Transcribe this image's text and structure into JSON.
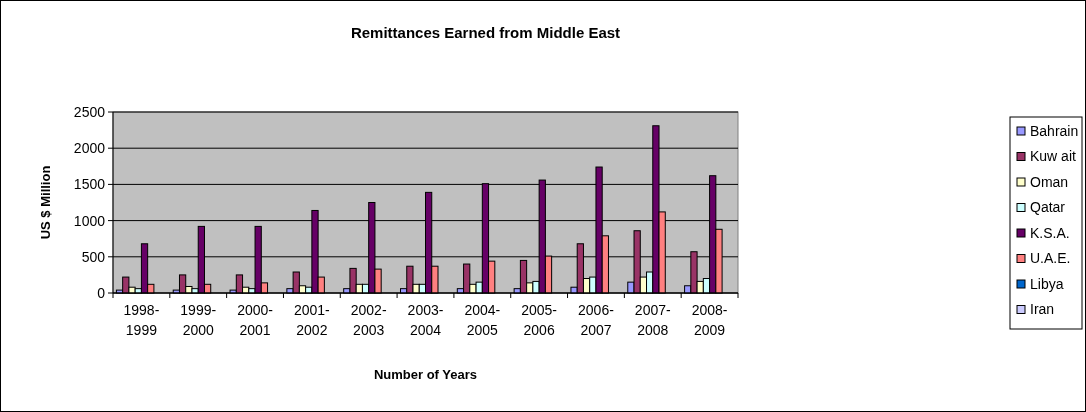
{
  "chart_data": {
    "type": "bar",
    "title": "Remittances Earned from Middle East",
    "xlabel": "Number of Years",
    "ylabel": "US $ Million",
    "categories": [
      "1998-1999",
      "1999-2000",
      "2000-2001",
      "2001-2002",
      "2002-2003",
      "2003-2004",
      "2004-2005",
      "2005-2006",
      "2006-2007",
      "2007-2008",
      "2008-2009"
    ],
    "series": [
      {
        "name": "Bahrain",
        "color": "#9999ff",
        "values": [
          40,
          40,
          40,
          60,
          60,
          60,
          60,
          60,
          80,
          150,
          100
        ]
      },
      {
        "name": "Kuw ait",
        "color": "#993366",
        "values": [
          220,
          250,
          250,
          290,
          340,
          370,
          400,
          450,
          680,
          860,
          570
        ]
      },
      {
        "name": "Oman",
        "color": "#ffffcc",
        "values": [
          80,
          90,
          80,
          100,
          120,
          120,
          120,
          140,
          200,
          220,
          160
        ]
      },
      {
        "name": "Qatar",
        "color": "#ccffff",
        "values": [
          60,
          60,
          60,
          80,
          120,
          120,
          150,
          160,
          220,
          290,
          200
        ]
      },
      {
        "name": "K.S.A.",
        "color": "#660066",
        "values": [
          680,
          920,
          920,
          1140,
          1250,
          1390,
          1510,
          1560,
          1740,
          2310,
          1620
        ]
      },
      {
        "name": "U.A.E.",
        "color": "#ff8080",
        "values": [
          120,
          120,
          140,
          220,
          330,
          370,
          440,
          510,
          790,
          1120,
          880
        ]
      },
      {
        "name": "Libya",
        "color": "#0066cc",
        "values": [
          0,
          0,
          0,
          0,
          0,
          0,
          0,
          0,
          0,
          0,
          0
        ]
      },
      {
        "name": "Iran",
        "color": "#ccccff",
        "values": [
          0,
          0,
          0,
          0,
          0,
          0,
          0,
          0,
          0,
          0,
          0
        ]
      }
    ],
    "ylim": [
      0,
      2500
    ],
    "yticks": [
      0,
      500,
      1000,
      1500,
      2000,
      2500
    ],
    "grid": "y",
    "legend": "right"
  }
}
